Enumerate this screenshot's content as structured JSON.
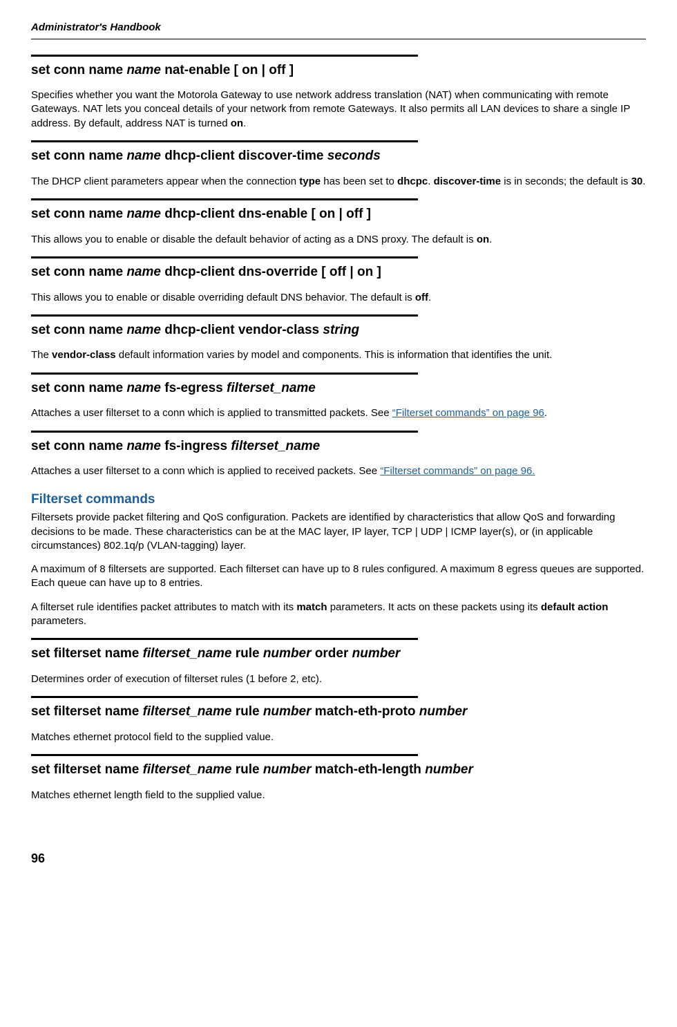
{
  "header": {
    "title": "Administrator's Handbook"
  },
  "commands": [
    {
      "heading_parts": [
        "set conn name ",
        "name",
        " nat-enable [ on | off ]"
      ],
      "desc_html": "Specifies whether you want the Motorola Gateway to use network address translation (NAT) when communicating with remote Gateways. NAT lets you conceal details of your network from remote Gateways. It also permits all LAN devices to share a single IP address. By default, address NAT is turned <b>on</b>."
    },
    {
      "heading_parts": [
        "set conn name ",
        "name",
        " dhcp-client discover-time ",
        "seconds"
      ],
      "desc_html": "The DHCP client parameters appear when the connection <b>type</b> has been set to <b>dhcpc</b>. <b>discover-time</b> is in seconds; the default is <b>30</b>."
    },
    {
      "heading_parts": [
        "set conn name ",
        "name",
        " dhcp-client dns-enable [ on | off ]"
      ],
      "desc_html": "This allows you to enable or disable the default behavior of acting as a DNS proxy. The default is <b>on</b>."
    },
    {
      "heading_parts": [
        "set conn name ",
        "name",
        " dhcp-client dns-override [ off | on ]"
      ],
      "desc_html": "This allows you to enable or disable overriding default DNS behavior. The default is <b>off</b>."
    },
    {
      "heading_parts": [
        "set conn name ",
        "name",
        " dhcp-client vendor-class ",
        "string"
      ],
      "desc_html": "The <b>vendor-class</b> default information varies by model and components. This is information that identifies the unit."
    },
    {
      "heading_parts": [
        "set conn name ",
        "name",
        " fs-egress ",
        "filterset_name"
      ],
      "desc_html": "Attaches a user filterset to a conn which is applied to transmitted packets. See <a class='link' data-name='filterset-link' data-interactable='true'>“Filterset commands” on page 96</a>."
    },
    {
      "heading_parts": [
        "set conn  name ",
        "name",
        " fs-ingress ",
        "filterset_name"
      ],
      "desc_html": "Attaches a user filterset to a conn which is applied to received packets. See <a class='link' data-name='filterset-link' data-interactable='true'>“Filterset commands” on page 96.</a>"
    }
  ],
  "section": {
    "title": "Filterset commands",
    "paragraphs": [
      "Filtersets provide packet filtering and QoS configuration. Packets are identified by characteristics that allow QoS and forwarding decisions to be made. These characteristics can be at the MAC layer, IP layer, TCP | UDP | ICMP layer(s), or (in applicable circumstances) 802.1q/p (VLAN-tagging) layer.",
      "A maximum of 8 filtersets are supported. Each filterset can have up to 8 rules configured.  A maximum 8 egress queues are supported. Each queue can have up to 8 entries.",
      "A filterset rule identifies packet attributes to match with its <b>match</b> parameters. It acts on these packets using its <b>default action</b> parameters."
    ]
  },
  "filterset_commands": [
    {
      "heading_parts": [
        "set filterset name ",
        "filterset_name",
        " rule ",
        "number",
        " order ",
        "number"
      ],
      "desc_html": "Determines order of execution of filterset rules (1 before 2, etc)."
    },
    {
      "heading_parts": [
        "set filterset name ",
        "filterset_name",
        " rule ",
        "number",
        " match-eth-proto  ",
        "number"
      ],
      "desc_html": "Matches ethernet protocol field to the supplied value."
    },
    {
      "heading_parts": [
        "set filterset name ",
        "filterset_name",
        " rule ",
        "number",
        " match-eth-length  ",
        "number"
      ],
      "desc_html": "Matches ethernet length field to the supplied value."
    }
  ],
  "page_number": "96"
}
